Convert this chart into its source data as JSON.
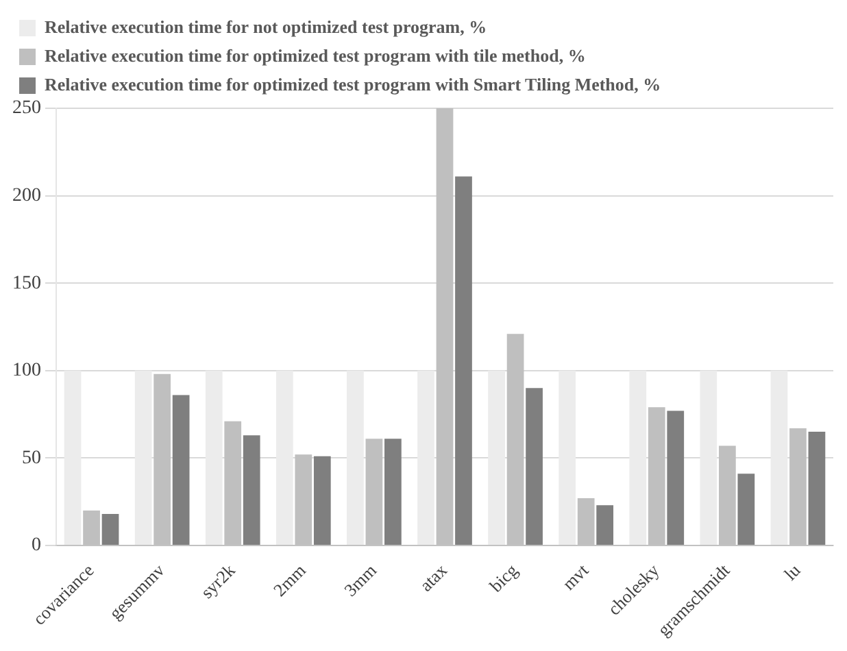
{
  "chart_data": {
    "type": "bar",
    "categories": [
      "covariance",
      "gesummv",
      "syr2k",
      "2mm",
      "3mm",
      "atax",
      "bicg",
      "mvt",
      "cholesky",
      "gramschmidt",
      "lu"
    ],
    "series": [
      {
        "name": "Relative execution time for not optimized test program, %",
        "color": "#ececec",
        "values": [
          100,
          100,
          100,
          100,
          100,
          100,
          100,
          100,
          100,
          100,
          100
        ]
      },
      {
        "name": "Relative execution time for optimized test program with tile method, %",
        "color": "#bfbfbf",
        "values": [
          20,
          98,
          71,
          52,
          61,
          250,
          121,
          27,
          79,
          57,
          67
        ]
      },
      {
        "name": "Relative execution time for optimized test program with Smart Tiling Method, %",
        "color": "#7f7f7f",
        "values": [
          18,
          86,
          63,
          51,
          61,
          211,
          90,
          23,
          77,
          41,
          65
        ]
      }
    ],
    "ylim": [
      0,
      250
    ],
    "yticks": [
      0,
      50,
      100,
      150,
      200,
      250
    ],
    "grid": "y",
    "legend": "top"
  }
}
